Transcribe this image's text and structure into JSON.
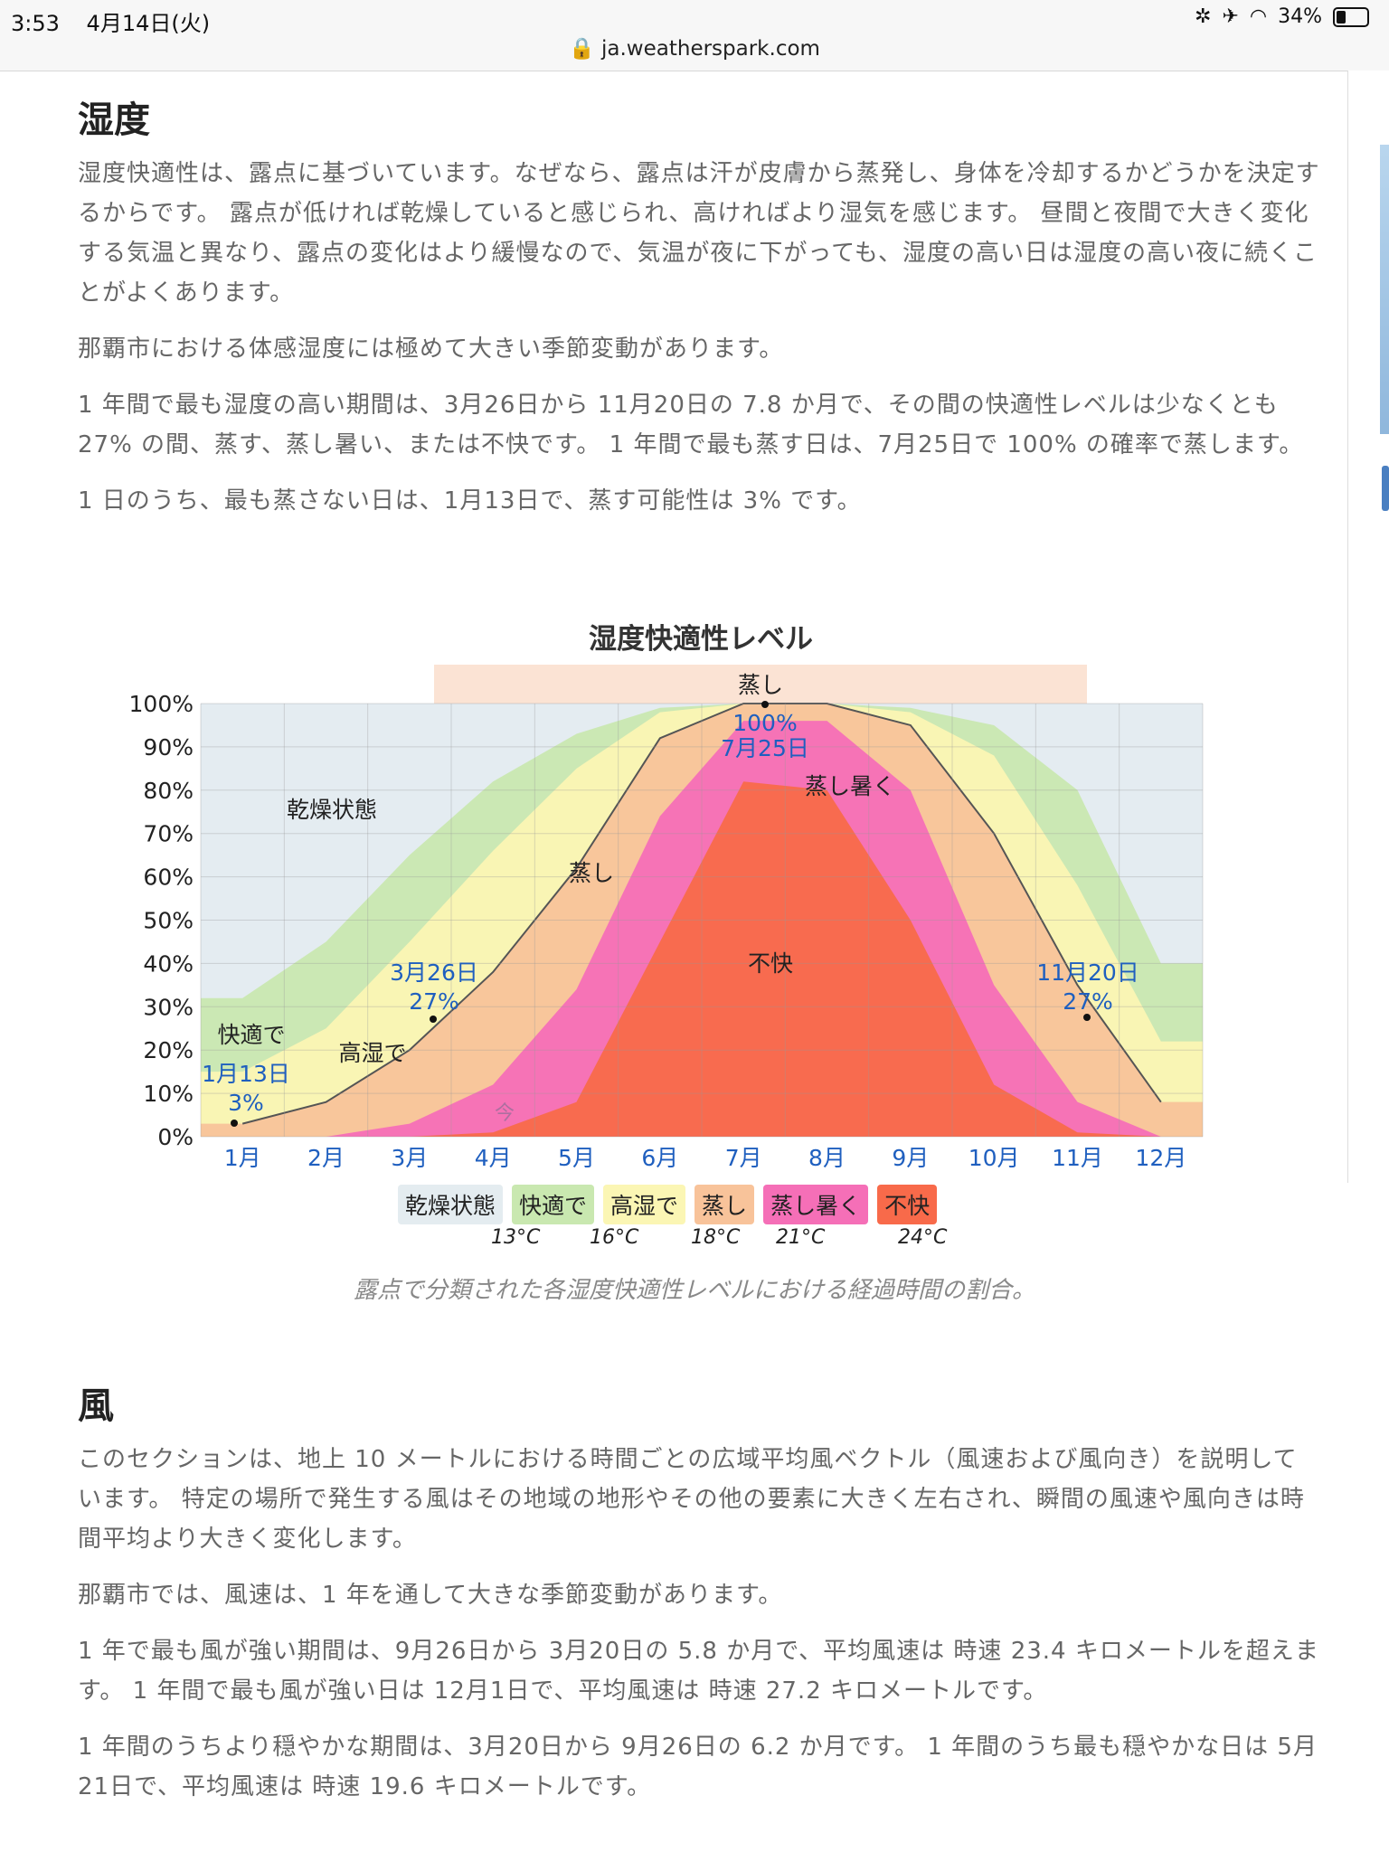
{
  "status_bar": {
    "time": "3:53",
    "date": "4月14日(火)",
    "battery": "34%",
    "url": "ja.weatherspark.com"
  },
  "humidity": {
    "heading": "湿度",
    "para1": "湿度快適性は、露点に基づいています。なぜなら、露点は汗が皮膚から蒸発し、身体を冷却するかどうかを決定するからです。 露点が低ければ乾燥していると感じられ、高ければより湿気を感じます。 昼間と夜間で大きく変化する気温と異なり、露点の変化はより緩慢なので、気温が夜に下がっても、湿度の高い日は湿度の高い夜に続くことがよくあります。",
    "para2": "那覇市における体感湿度には極めて大きい季節変動があります。",
    "para3": "1 年間で最も湿度の高い期間は、3月26日から 11月20日の 7.8 か月で、その間の快適性レベルは少なくとも 27% の間、蒸す、蒸し暑い、または不快です。 1 年間で最も蒸す日は、7月25日で 100% の確率で蒸します。",
    "para4": "1 日のうち、最も蒸さない日は、1月13日で、蒸す可能性は 3% です。"
  },
  "chart": {
    "title": "湿度快適性レベル",
    "caption": "露点で分類された各湿度快適性レベルにおける経過時間の割合。",
    "y_ticks": [
      "0%",
      "10%",
      "20%",
      "30%",
      "40%",
      "50%",
      "60%",
      "70%",
      "80%",
      "90%",
      "100%"
    ],
    "months": [
      "1月",
      "2月",
      "3月",
      "4月",
      "5月",
      "6月",
      "7月",
      "8月",
      "9月",
      "10月",
      "11月",
      "12月"
    ],
    "region_labels": {
      "dry": "乾燥状態",
      "comfortable": "快適で",
      "humid": "高湿で",
      "muggy_top": "蒸し",
      "muggy_mid": "蒸し",
      "oppressive": "蒸し暑く",
      "miserable": "不快",
      "now": "今"
    },
    "annotations": [
      {
        "date": "1月13日",
        "value": "3%"
      },
      {
        "date": "3月26日",
        "value": "27%"
      },
      {
        "date": "7月25日",
        "value": "100%"
      },
      {
        "date": "11月20日",
        "value": "27%"
      }
    ],
    "legend": [
      {
        "label": "乾燥状態",
        "color": "#e4ecf0"
      },
      {
        "label": "快適で",
        "color": "#c9e8b0"
      },
      {
        "label": "高湿で",
        "color": "#fbf6b4"
      },
      {
        "label": "蒸し",
        "color": "#f8c39a"
      },
      {
        "label": "蒸し暑く",
        "color": "#f56fb7"
      },
      {
        "label": "不快",
        "color": "#f86a4a"
      }
    ],
    "legend_temps": [
      "13°C",
      "16°C",
      "18°C",
      "21°C",
      "24°C"
    ]
  },
  "chart_data": {
    "type": "area",
    "title": "湿度快適性レベル",
    "x_label": "",
    "y_label": "",
    "ylim": [
      0,
      100
    ],
    "x": [
      "1月",
      "2月",
      "3月",
      "4月",
      "5月",
      "6月",
      "7月",
      "8月",
      "9月",
      "10月",
      "11月",
      "12月"
    ],
    "series": [
      {
        "name": "不快",
        "values": [
          0,
          0,
          0,
          1,
          8,
          45,
          82,
          80,
          50,
          12,
          1,
          0
        ]
      },
      {
        "name": "蒸し暑く",
        "values": [
          0,
          0,
          3,
          12,
          34,
          74,
          96,
          96,
          80,
          35,
          8,
          0
        ]
      },
      {
        "name": "蒸し",
        "values": [
          3,
          8,
          20,
          38,
          62,
          92,
          100,
          100,
          95,
          70,
          35,
          8
        ]
      },
      {
        "name": "高湿で",
        "values": [
          15,
          25,
          45,
          66,
          85,
          98,
          100,
          100,
          98,
          88,
          58,
          22
        ]
      },
      {
        "name": "快適で",
        "values": [
          32,
          45,
          65,
          82,
          93,
          99,
          100,
          100,
          99,
          95,
          80,
          40
        ]
      },
      {
        "name": "乾燥状態",
        "values": [
          100,
          100,
          100,
          100,
          100,
          100,
          100,
          100,
          100,
          100,
          100,
          100
        ]
      }
    ],
    "highlight_period": [
      "3月26日",
      "11月20日"
    ],
    "grid": true
  },
  "wind": {
    "heading": "風",
    "para1": "このセクションは、地上 10 メートルにおける時間ごとの広域平均風ベクトル（風速および風向き）を説明しています。 特定の場所で発生する風はその地域の地形やその他の要素に大きく左右され、瞬間の風速や風向きは時間平均より大きく変化します。",
    "para2": "那覇市では、風速は、1 年を通して大きな季節変動があります。",
    "para3": "1 年で最も風が強い期間は、9月26日から 3月20日の 5.8 か月で、平均風速は 時速 23.4 キロメートルを超えます。 1 年間で最も風が強い日は 12月1日で、平均風速は 時速 27.2 キロメートルです。",
    "para4": "1 年間のうちより穏やかな期間は、3月20日から 9月26日の 6.2 か月です。 1 年間のうち最も穏やかな日は 5月21日で、平均風速は 時速 19.6 キロメートルです。"
  }
}
